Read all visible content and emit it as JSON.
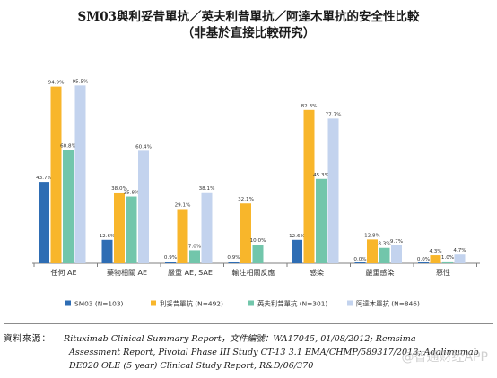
{
  "title": {
    "line1": "SM03與利妥昔單抗／英夫利昔單抗／阿達木單抗的安全性比較",
    "line2": "（非基於直接比較研究）"
  },
  "chart_data": {
    "type": "bar",
    "ylim": [
      0,
      100
    ],
    "grid": false,
    "legend_position": "bottom",
    "categories": [
      "任何 AE",
      "藥物相關 AE",
      "嚴重 AE, SAE",
      "輸注相關反應",
      "感染",
      "嚴重感染",
      "惡性"
    ],
    "series": [
      {
        "name": "SM03 (N=103)",
        "color": "#2e6db4",
        "values": [
          43.7,
          12.6,
          0.9,
          0.9,
          12.6,
          0.0,
          0.0
        ],
        "labels": [
          "43.7%",
          "12.6%",
          "0.9%",
          "0.9%",
          "12.6%",
          "0.0%",
          "0.0%"
        ]
      },
      {
        "name": "利妥昔單抗 (N=492)",
        "color": "#f8b62b",
        "values": [
          94.9,
          38.0,
          29.1,
          32.1,
          82.3,
          12.8,
          4.3
        ],
        "labels": [
          "94.9%",
          "38.0%",
          "29.1%",
          "32.1%",
          "82.3%",
          "12.8%",
          "4.3%"
        ]
      },
      {
        "name": "英夫利昔單抗 (N=301)",
        "color": "#72c6ab",
        "values": [
          60.8,
          35.8,
          7.0,
          10.0,
          45.3,
          8.3,
          1.0
        ],
        "labels": [
          "60.8%",
          "35.8%",
          "7.0%",
          "10.0%",
          "45.3%",
          "8.3%",
          "1.0%"
        ]
      },
      {
        "name": "阿達木單抗 (N=846)",
        "color": "#c3d3ee",
        "values": [
          95.5,
          60.4,
          38.1,
          null,
          77.7,
          9.7,
          4.7
        ],
        "labels": [
          "95.5%",
          "60.4%",
          "38.1%",
          "",
          "77.7%",
          "9.7%",
          "4.7%"
        ]
      }
    ]
  },
  "source": {
    "label": "資料來源：",
    "line1": "Rituximab Clinical Summary Report，文件編號：WA17045, 01/08/2012; Remsima",
    "line2": "Assessment Report, Pivotal Phase III Study CT-13 3.1 EMA/CHMP/589317/2013; Adalimumab",
    "line3": "DE020 OLE (5 year) Clinical Study Report, R&D/06/370"
  },
  "watermark": "@智通财经APP"
}
